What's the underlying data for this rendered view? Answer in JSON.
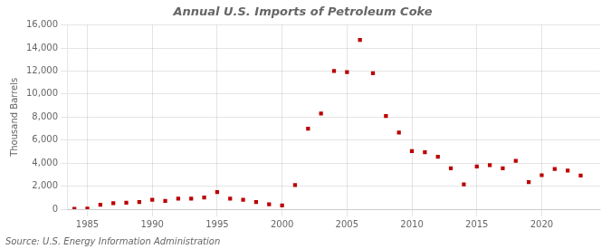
{
  "chart_data": {
    "type": "scatter",
    "title": "Annual U.S. Imports of Petroleum Coke",
    "ylabel": "Thousand Barrels",
    "annotations": [
      "Source: U.S. Energy Information Administration"
    ],
    "x": [
      1984,
      1985,
      1986,
      1987,
      1988,
      1989,
      1990,
      1991,
      1992,
      1993,
      1994,
      1995,
      1996,
      1997,
      1998,
      1999,
      2000,
      2001,
      2002,
      2003,
      2004,
      2005,
      2006,
      2007,
      2008,
      2009,
      2010,
      2011,
      2012,
      2013,
      2014,
      2015,
      2016,
      2017,
      2018,
      2019,
      2020,
      2021,
      2022,
      2023
    ],
    "values": [
      30,
      55,
      380,
      520,
      560,
      610,
      820,
      710,
      910,
      920,
      1020,
      1480,
      910,
      820,
      620,
      420,
      320,
      2100,
      7000,
      8300,
      12000,
      11900,
      14700,
      11800,
      8100,
      6650,
      5050,
      4950,
      4550,
      3550,
      2150,
      3700,
      3820,
      3550,
      4200,
      2350,
      2950,
      3500,
      3350,
      2920
    ],
    "color": "#bb0000",
    "marker": "square",
    "xlim": [
      1983.5,
      2024.5
    ],
    "xticks": [
      1985,
      1990,
      1995,
      2000,
      2005,
      2010,
      2015,
      2020
    ],
    "ylim": [
      0,
      16000
    ],
    "yticks": [
      0,
      {
        "value": 2000,
        "label": "2,000"
      },
      {
        "value": 4000,
        "label": "4,000"
      },
      {
        "value": 6000,
        "label": "6,000"
      },
      {
        "value": 8000,
        "label": "8,000"
      },
      {
        "value": 10000,
        "label": "10,000"
      },
      {
        "value": 12000,
        "label": "12,000"
      },
      {
        "value": 14000,
        "label": "14,000"
      },
      {
        "value": 16000,
        "label": "16,000"
      }
    ],
    "grid": true
  }
}
